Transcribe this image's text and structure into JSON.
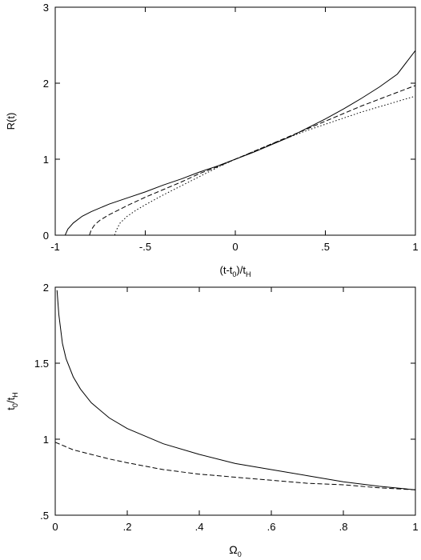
{
  "chart_data": [
    {
      "type": "line",
      "ylabel": "R(t)",
      "xlabel_parts": {
        "main": "(t-t",
        "sub1": "0",
        "mid": ")/t",
        "sub2": "H"
      },
      "xlim": [
        -1,
        1
      ],
      "ylim": [
        0,
        3
      ],
      "xticks": [
        {
          "value": -1,
          "label": "-1"
        },
        {
          "value": -0.5,
          "label": "-.5"
        },
        {
          "value": 0,
          "label": "0"
        },
        {
          "value": 0.5,
          "label": ".5"
        },
        {
          "value": 1,
          "label": "1"
        }
      ],
      "yticks": [
        {
          "value": 0,
          "label": "0"
        },
        {
          "value": 1,
          "label": "1"
        },
        {
          "value": 2,
          "label": "2"
        },
        {
          "value": 3,
          "label": "3"
        }
      ],
      "series": [
        {
          "style": "solid",
          "x": [
            -0.945,
            -0.93,
            -0.9,
            -0.85,
            -0.8,
            -0.7,
            -0.6,
            -0.5,
            -0.4,
            -0.3,
            -0.2,
            -0.1,
            0,
            0.1,
            0.2,
            0.3,
            0.4,
            0.5,
            0.6,
            0.7,
            0.8,
            0.9,
            1.0
          ],
          "y": [
            0,
            0.08,
            0.16,
            0.25,
            0.31,
            0.41,
            0.49,
            0.57,
            0.66,
            0.74,
            0.83,
            0.91,
            1.0,
            1.09,
            1.19,
            1.29,
            1.41,
            1.53,
            1.66,
            1.8,
            1.95,
            2.12,
            2.43
          ]
        },
        {
          "style": "dashed",
          "x": [
            -0.81,
            -0.8,
            -0.78,
            -0.75,
            -0.7,
            -0.65,
            -0.6,
            -0.5,
            -0.4,
            -0.3,
            -0.2,
            -0.1,
            0,
            0.1,
            0.2,
            0.3,
            0.4,
            0.5,
            0.6,
            0.7,
            0.8,
            0.9,
            1.0
          ],
          "y": [
            0,
            0.07,
            0.14,
            0.2,
            0.27,
            0.33,
            0.39,
            0.5,
            0.6,
            0.7,
            0.81,
            0.9,
            1.0,
            1.1,
            1.2,
            1.3,
            1.4,
            1.5,
            1.6,
            1.7,
            1.79,
            1.88,
            1.97
          ]
        },
        {
          "style": "dotted",
          "x": [
            -0.67,
            -0.66,
            -0.64,
            -0.6,
            -0.55,
            -0.5,
            -0.4,
            -0.3,
            -0.2,
            -0.1,
            0,
            0.1,
            0.2,
            0.3,
            0.4,
            0.5,
            0.6,
            0.7,
            0.8,
            0.9,
            1.0
          ],
          "y": [
            0,
            0.07,
            0.16,
            0.25,
            0.33,
            0.4,
            0.53,
            0.65,
            0.77,
            0.89,
            1.0,
            1.1,
            1.2,
            1.29,
            1.38,
            1.46,
            1.54,
            1.62,
            1.69,
            1.76,
            1.83
          ]
        }
      ]
    },
    {
      "type": "line",
      "ylabel_parts": {
        "main": "t",
        "sub1": "0",
        "mid": "/t",
        "sub2": "H"
      },
      "xlabel_parts": {
        "main": "Ω",
        "sub1": "0"
      },
      "xlim": [
        0,
        1
      ],
      "ylim": [
        0.5,
        2
      ],
      "xticks": [
        {
          "value": 0,
          "label": "0"
        },
        {
          "value": 0.2,
          "label": ".2"
        },
        {
          "value": 0.4,
          "label": ".4"
        },
        {
          "value": 0.6,
          "label": ".6"
        },
        {
          "value": 0.8,
          "label": ".8"
        },
        {
          "value": 1,
          "label": "1"
        }
      ],
      "yticks": [
        {
          "value": 0.5,
          "label": ".5"
        },
        {
          "value": 1,
          "label": "1"
        },
        {
          "value": 1.5,
          "label": "1.5"
        },
        {
          "value": 2,
          "label": "2"
        }
      ],
      "series": [
        {
          "style": "solid",
          "x": [
            0.005,
            0.01,
            0.02,
            0.03,
            0.05,
            0.07,
            0.1,
            0.15,
            0.2,
            0.3,
            0.4,
            0.5,
            0.6,
            0.7,
            0.8,
            0.9,
            1.0
          ],
          "y": [
            1.98,
            1.82,
            1.63,
            1.53,
            1.41,
            1.33,
            1.24,
            1.14,
            1.07,
            0.97,
            0.9,
            0.84,
            0.8,
            0.76,
            0.72,
            0.69,
            0.667
          ]
        },
        {
          "style": "dashed",
          "x": [
            0,
            0.02,
            0.05,
            0.1,
            0.15,
            0.2,
            0.3,
            0.4,
            0.5,
            0.6,
            0.7,
            0.8,
            0.9,
            1.0
          ],
          "y": [
            0.98,
            0.96,
            0.93,
            0.9,
            0.87,
            0.845,
            0.8,
            0.77,
            0.75,
            0.73,
            0.71,
            0.7,
            0.68,
            0.667
          ]
        }
      ]
    }
  ]
}
